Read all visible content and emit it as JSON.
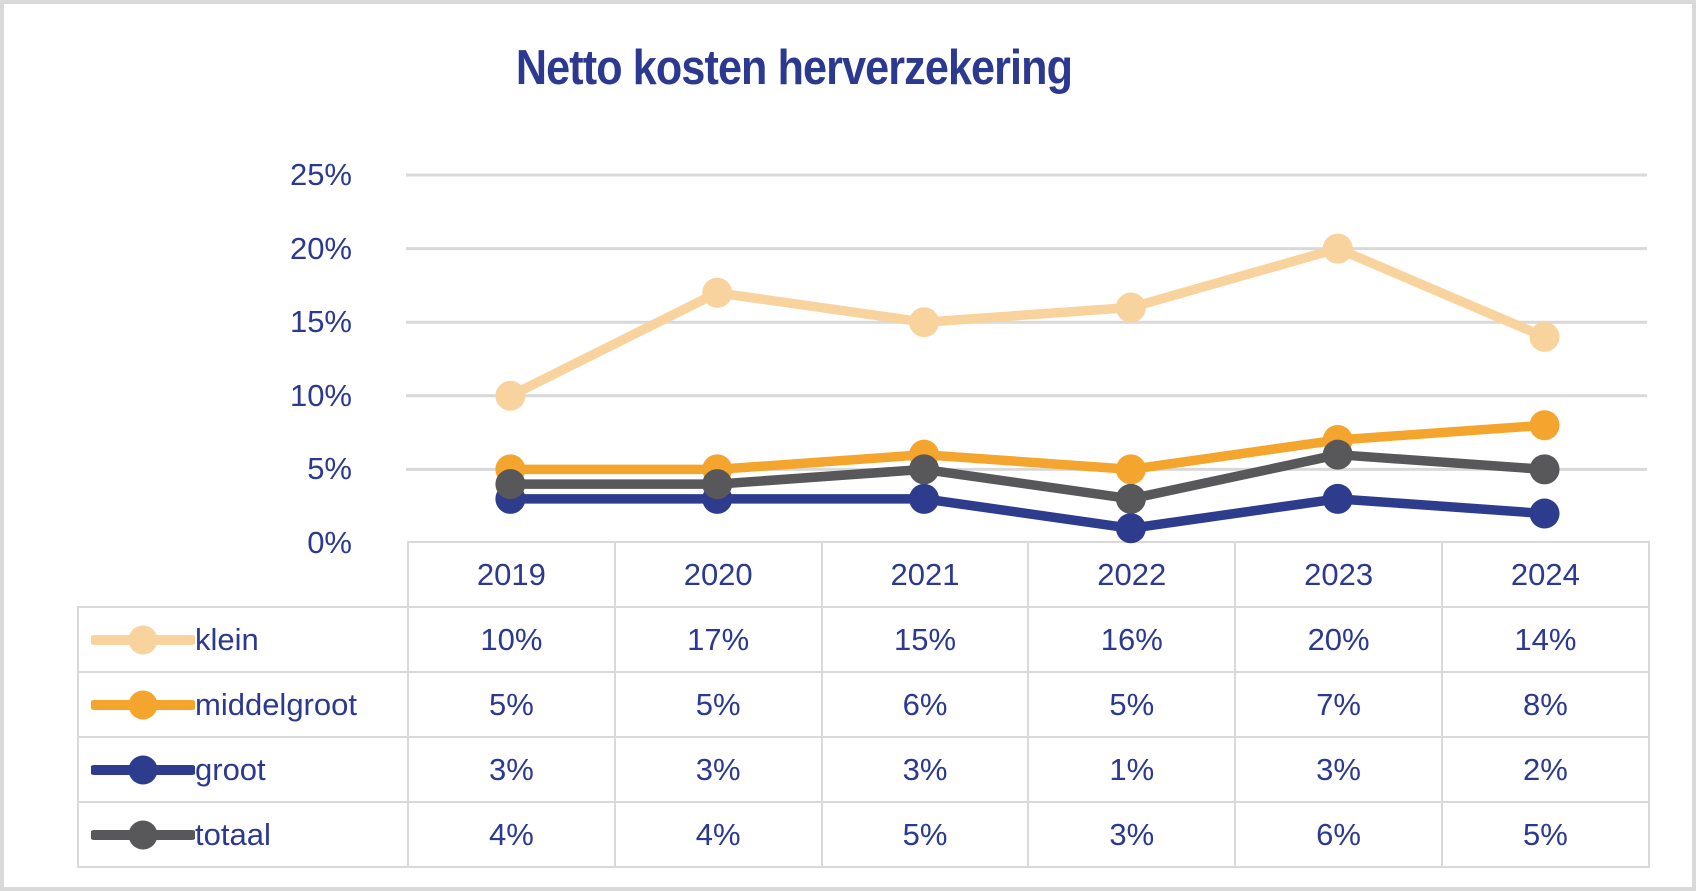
{
  "title": "Netto kosten herverzekering",
  "colors": {
    "text_navy": "#2B3990",
    "gridline": "#D9D9D9",
    "frame": "#D9D9D9",
    "background": "#FFFFFF"
  },
  "y_axis": {
    "tick_labels": [
      "25%",
      "20%",
      "15%",
      "10%",
      "5%",
      "0%"
    ],
    "tick_values": [
      25,
      20,
      15,
      10,
      5,
      0
    ]
  },
  "chart_data": {
    "type": "line",
    "title": "Netto kosten herverzekering",
    "categories": [
      "2019",
      "2020",
      "2021",
      "2022",
      "2023",
      "2024"
    ],
    "series": [
      {
        "name": "klein",
        "color": "#F9D39E",
        "values": [
          10,
          17,
          15,
          16,
          20,
          14
        ],
        "display": [
          "10%",
          "17%",
          "15%",
          "16%",
          "20%",
          "14%"
        ]
      },
      {
        "name": "middelgroot",
        "color": "#F4A52D",
        "values": [
          5,
          5,
          6,
          5,
          7,
          8
        ],
        "display": [
          "5%",
          "5%",
          "6%",
          "5%",
          "7%",
          "8%"
        ]
      },
      {
        "name": "groot",
        "color": "#2D3C8D",
        "values": [
          3,
          3,
          3,
          1,
          3,
          2
        ],
        "display": [
          "3%",
          "3%",
          "3%",
          "1%",
          "3%",
          "2%"
        ]
      },
      {
        "name": "totaal",
        "color": "#58585A",
        "values": [
          4,
          4,
          5,
          3,
          6,
          5
        ],
        "display": [
          "4%",
          "4%",
          "5%",
          "3%",
          "6%",
          "5%"
        ]
      }
    ],
    "ylim": [
      0,
      25
    ],
    "y_unit": "%",
    "grid": "horizontal",
    "legend_position": "data-table-left",
    "marker": "circle"
  }
}
